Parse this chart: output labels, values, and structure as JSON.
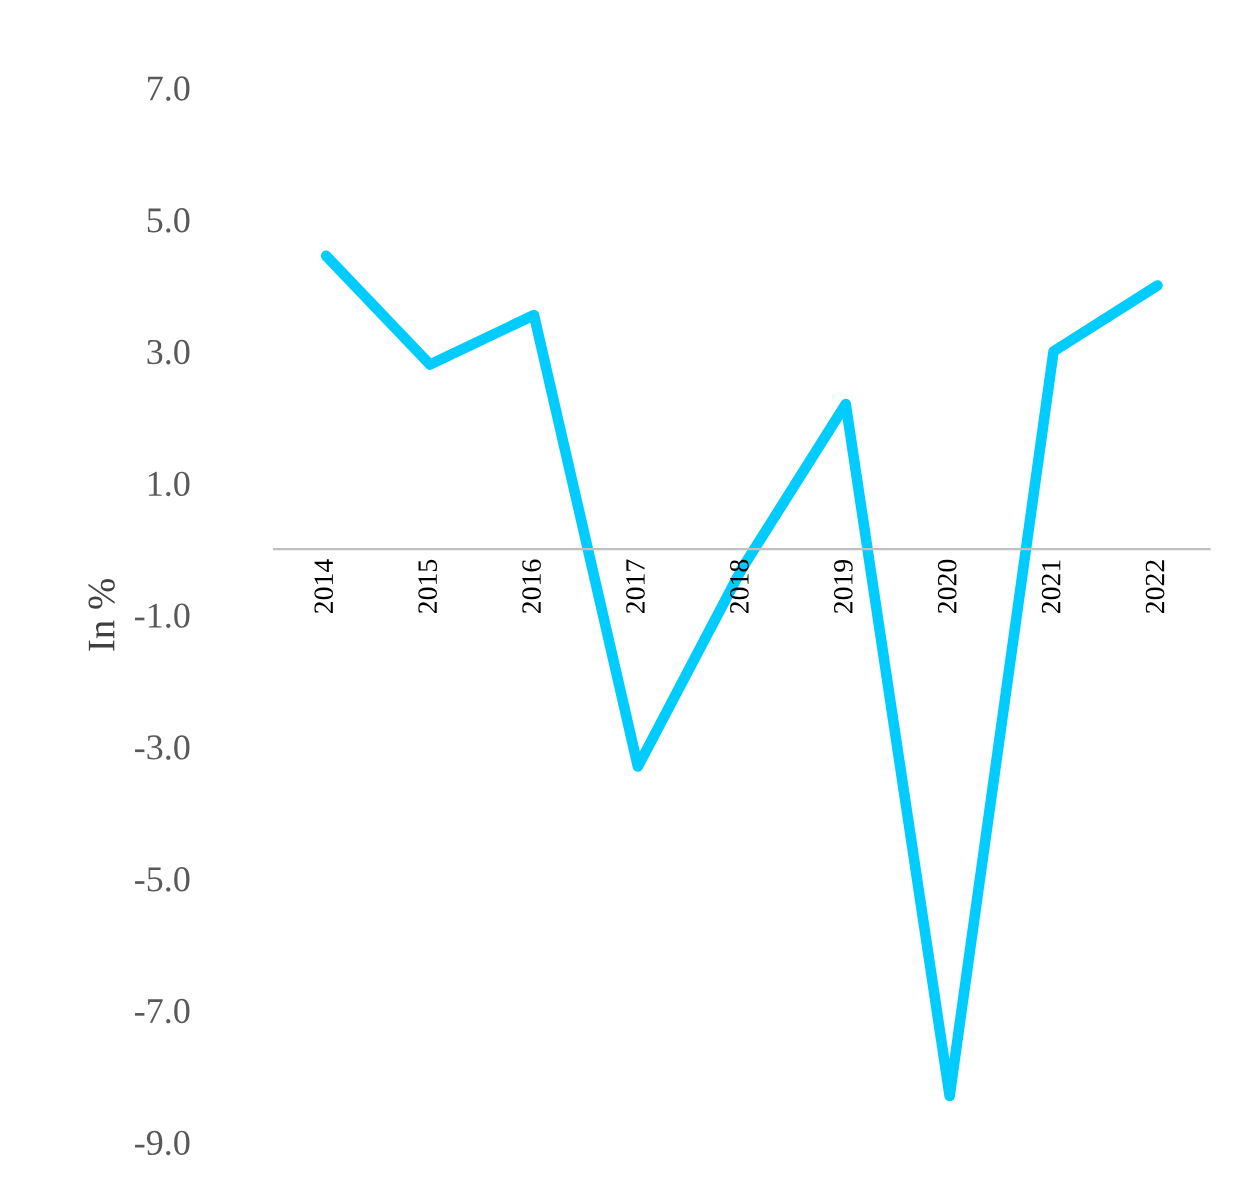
{
  "chart_data": {
    "type": "line",
    "ylabel": "In %",
    "categories": [
      "2014",
      "2015",
      "2016",
      "2017",
      "2018",
      "2019",
      "2020",
      "2021",
      "2022"
    ],
    "series": [
      {
        "color": "#00ccff",
        "values": [
          4.45,
          2.8,
          3.55,
          -3.3,
          -0.3,
          2.2,
          -8.3,
          3.0,
          4.0
        ]
      }
    ],
    "ylim": [
      -9,
      7
    ],
    "yticks": [
      {
        "value": -9,
        "label": "-9.0"
      },
      {
        "value": -7,
        "label": "-7.0"
      },
      {
        "value": -5,
        "label": "-5.0"
      },
      {
        "value": -3,
        "label": "-3.0"
      },
      {
        "value": -1,
        "label": "-1.0"
      },
      {
        "value": 1,
        "label": "1.0"
      },
      {
        "value": 3,
        "label": "3.0"
      },
      {
        "value": 5,
        "label": "5.0"
      },
      {
        "value": 7,
        "label": "7.0"
      }
    ],
    "grid": false,
    "legend": false,
    "marker": "none",
    "line_style": "solid"
  }
}
